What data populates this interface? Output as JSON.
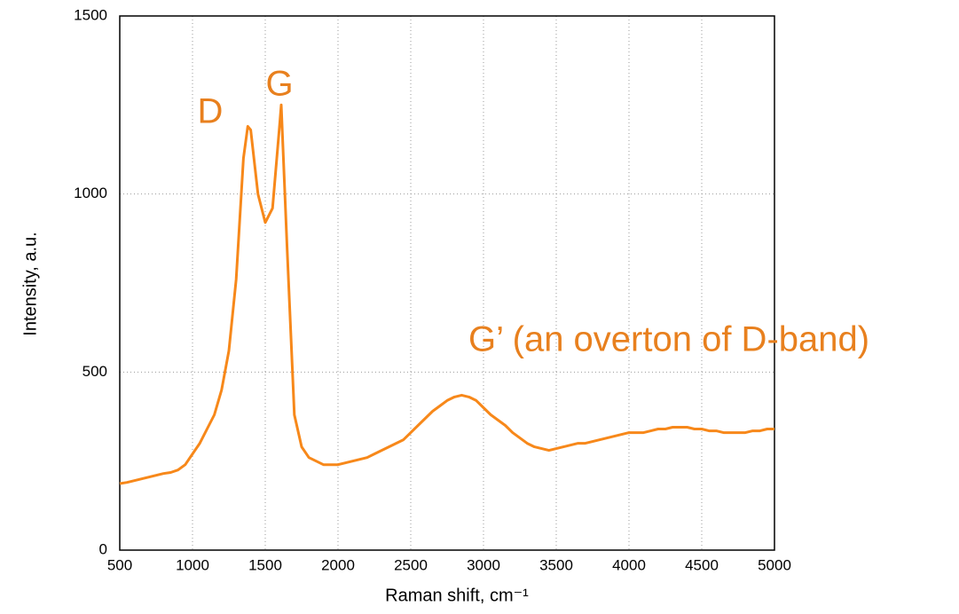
{
  "chart_data": {
    "type": "line",
    "xlabel": "Raman shift, cm⁻¹",
    "ylabel": "Intensity, a.u.",
    "annotations": [
      "D",
      "G",
      "G’ (an overton of D-band)"
    ],
    "x": [
      500,
      550,
      600,
      650,
      700,
      750,
      800,
      850,
      900,
      950,
      1000,
      1050,
      1100,
      1150,
      1200,
      1250,
      1300,
      1350,
      1380,
      1400,
      1450,
      1500,
      1550,
      1600,
      1610,
      1650,
      1700,
      1750,
      1800,
      1850,
      1900,
      1950,
      2000,
      2050,
      2100,
      2150,
      2200,
      2250,
      2300,
      2350,
      2400,
      2450,
      2500,
      2550,
      2600,
      2650,
      2700,
      2750,
      2800,
      2850,
      2900,
      2950,
      3000,
      3050,
      3100,
      3150,
      3200,
      3250,
      3300,
      3350,
      3400,
      3450,
      3500,
      3550,
      3600,
      3650,
      3700,
      3750,
      3800,
      3850,
      3900,
      3950,
      4000,
      4050,
      4100,
      4150,
      4200,
      4250,
      4300,
      4350,
      4400,
      4450,
      4500,
      4550,
      4600,
      4650,
      4700,
      4750,
      4800,
      4850,
      4900,
      4950,
      5000
    ],
    "values": [
      187,
      190,
      195,
      200,
      205,
      210,
      215,
      218,
      225,
      240,
      270,
      300,
      340,
      380,
      450,
      560,
      760,
      1100,
      1190,
      1180,
      1000,
      920,
      960,
      1200,
      1250,
      850,
      380,
      290,
      260,
      250,
      240,
      240,
      240,
      245,
      250,
      255,
      260,
      270,
      280,
      290,
      300,
      310,
      330,
      350,
      370,
      390,
      405,
      420,
      430,
      435,
      430,
      420,
      400,
      380,
      365,
      350,
      330,
      315,
      300,
      290,
      285,
      280,
      285,
      290,
      295,
      300,
      300,
      305,
      310,
      315,
      320,
      325,
      330,
      330,
      330,
      335,
      340,
      340,
      345,
      345,
      345,
      340,
      340,
      335,
      335,
      330,
      330,
      330,
      330,
      335,
      335,
      340,
      340
    ],
    "color": "#f7881a",
    "xlim": [
      500,
      5000
    ],
    "ylim": [
      0,
      1500
    ],
    "xticks": [
      500,
      1000,
      1500,
      2000,
      2500,
      3000,
      3500,
      4000,
      4500,
      5000
    ],
    "yticks": [
      0,
      500,
      1000,
      1500
    ],
    "grid": true
  }
}
